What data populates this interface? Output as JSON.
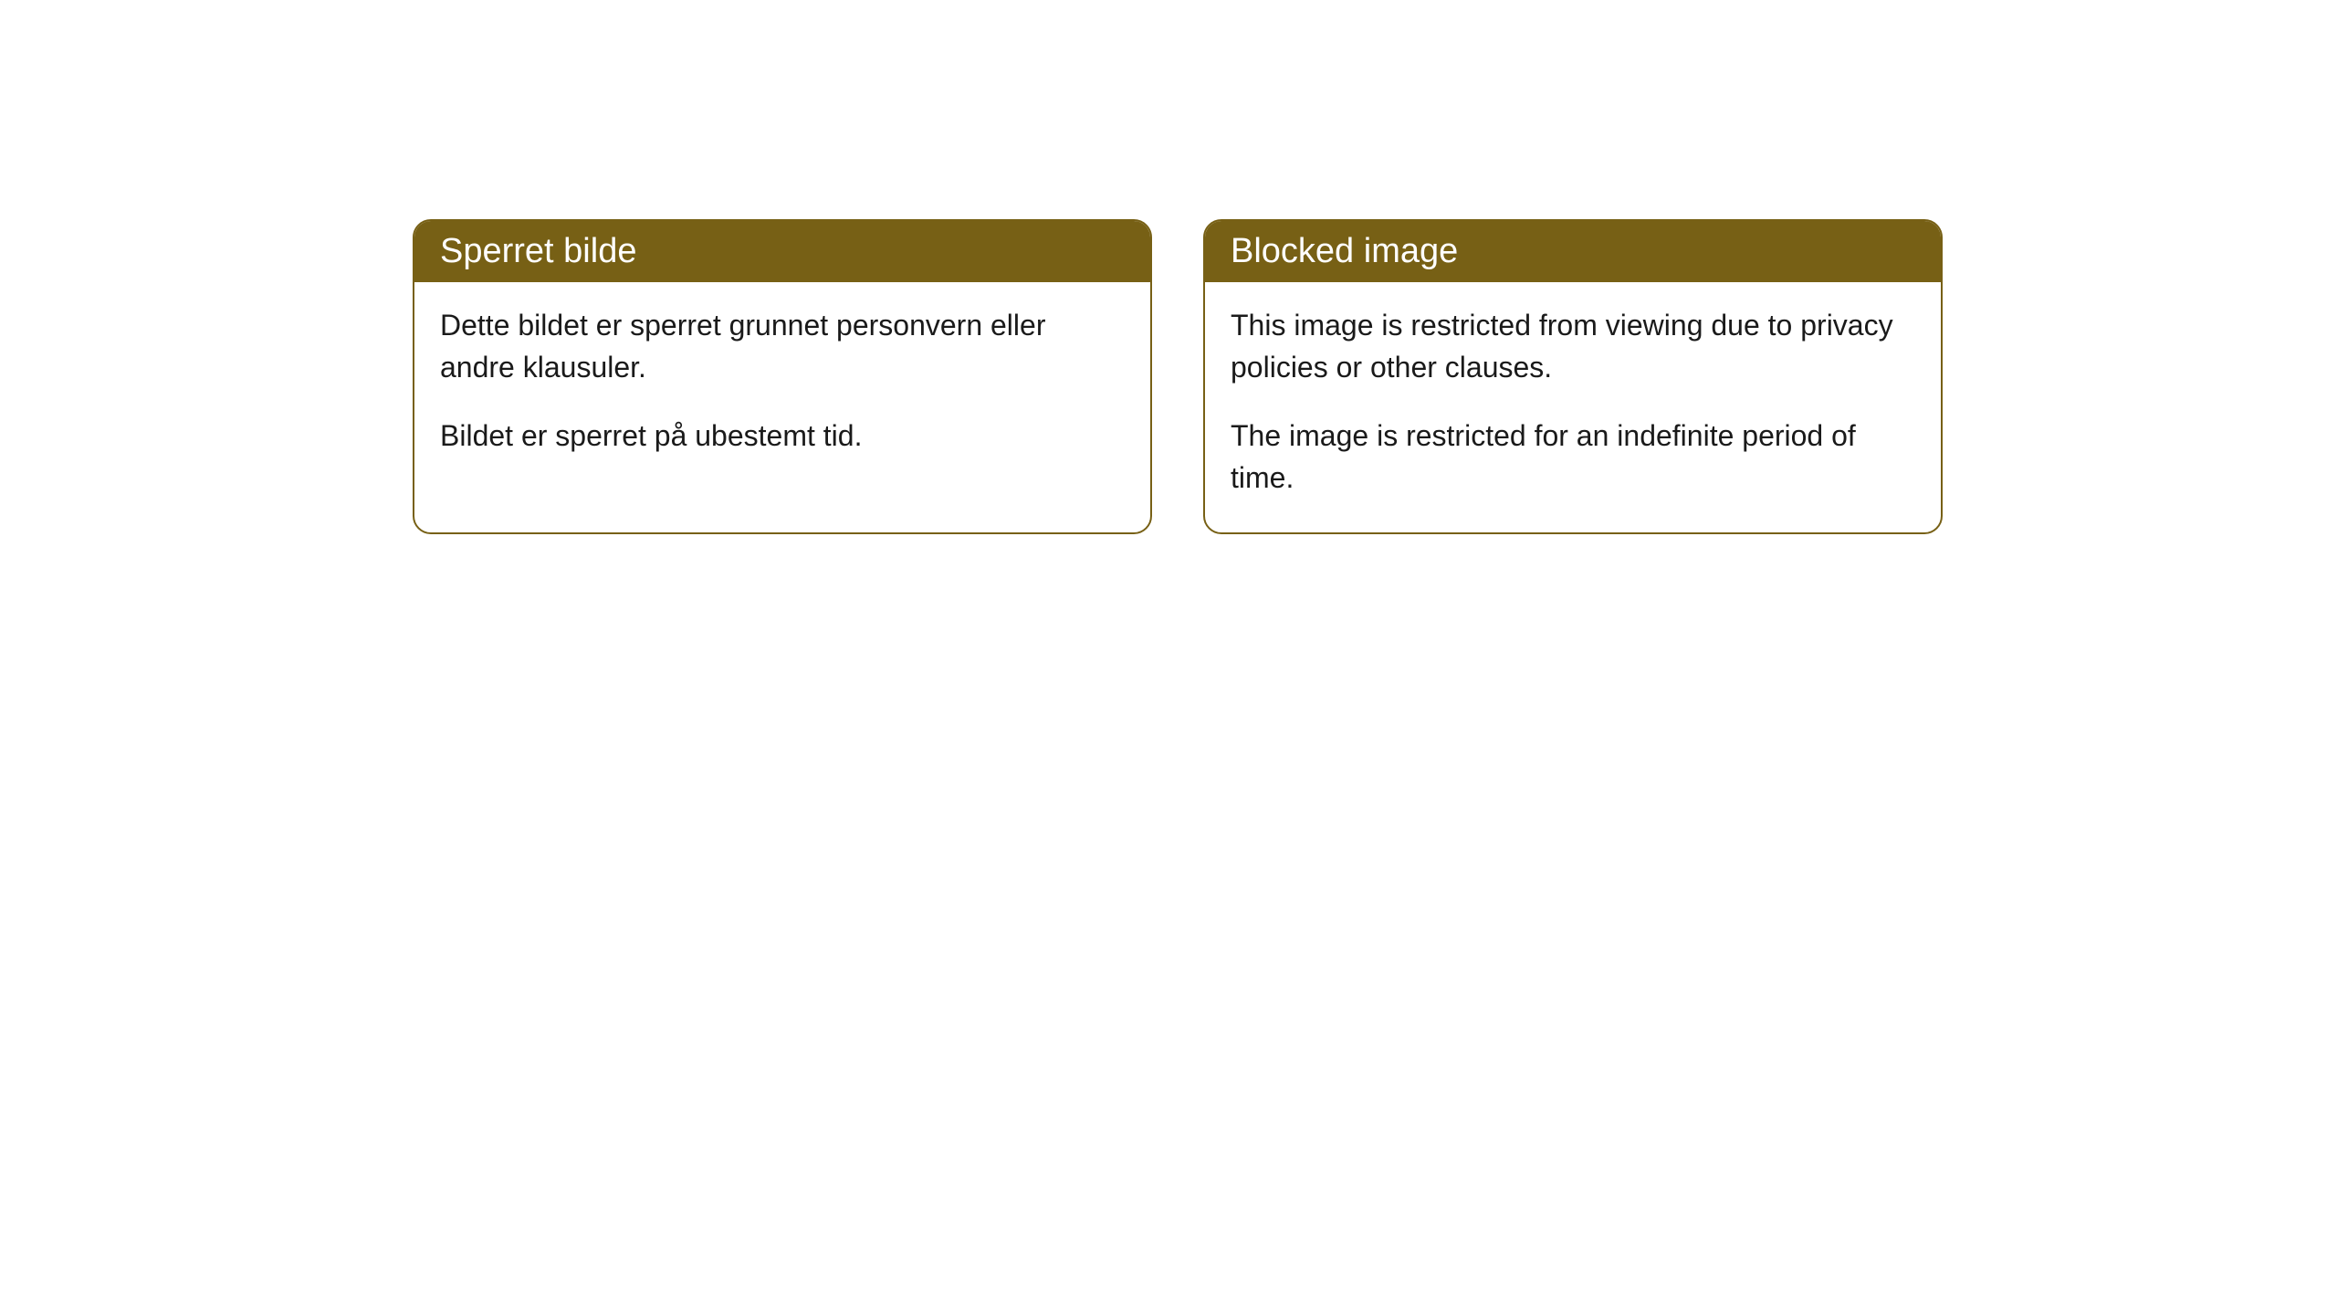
{
  "cards": [
    {
      "title": "Sperret bilde",
      "paragraph1": "Dette bildet er sperret grunnet personvern eller andre klausuler.",
      "paragraph2": "Bildet er sperret på ubestemt tid."
    },
    {
      "title": "Blocked image",
      "paragraph1": "This image is restricted from viewing due to privacy policies or other clauses.",
      "paragraph2": "The image is restricted for an indefinite period of time."
    }
  ],
  "styling": {
    "header_background": "#776015",
    "header_text_color": "#ffffff",
    "border_color": "#776015",
    "body_background": "#ffffff",
    "body_text_color": "#1a1a1a",
    "border_radius": 20,
    "title_fontsize": 38,
    "body_fontsize": 32
  }
}
